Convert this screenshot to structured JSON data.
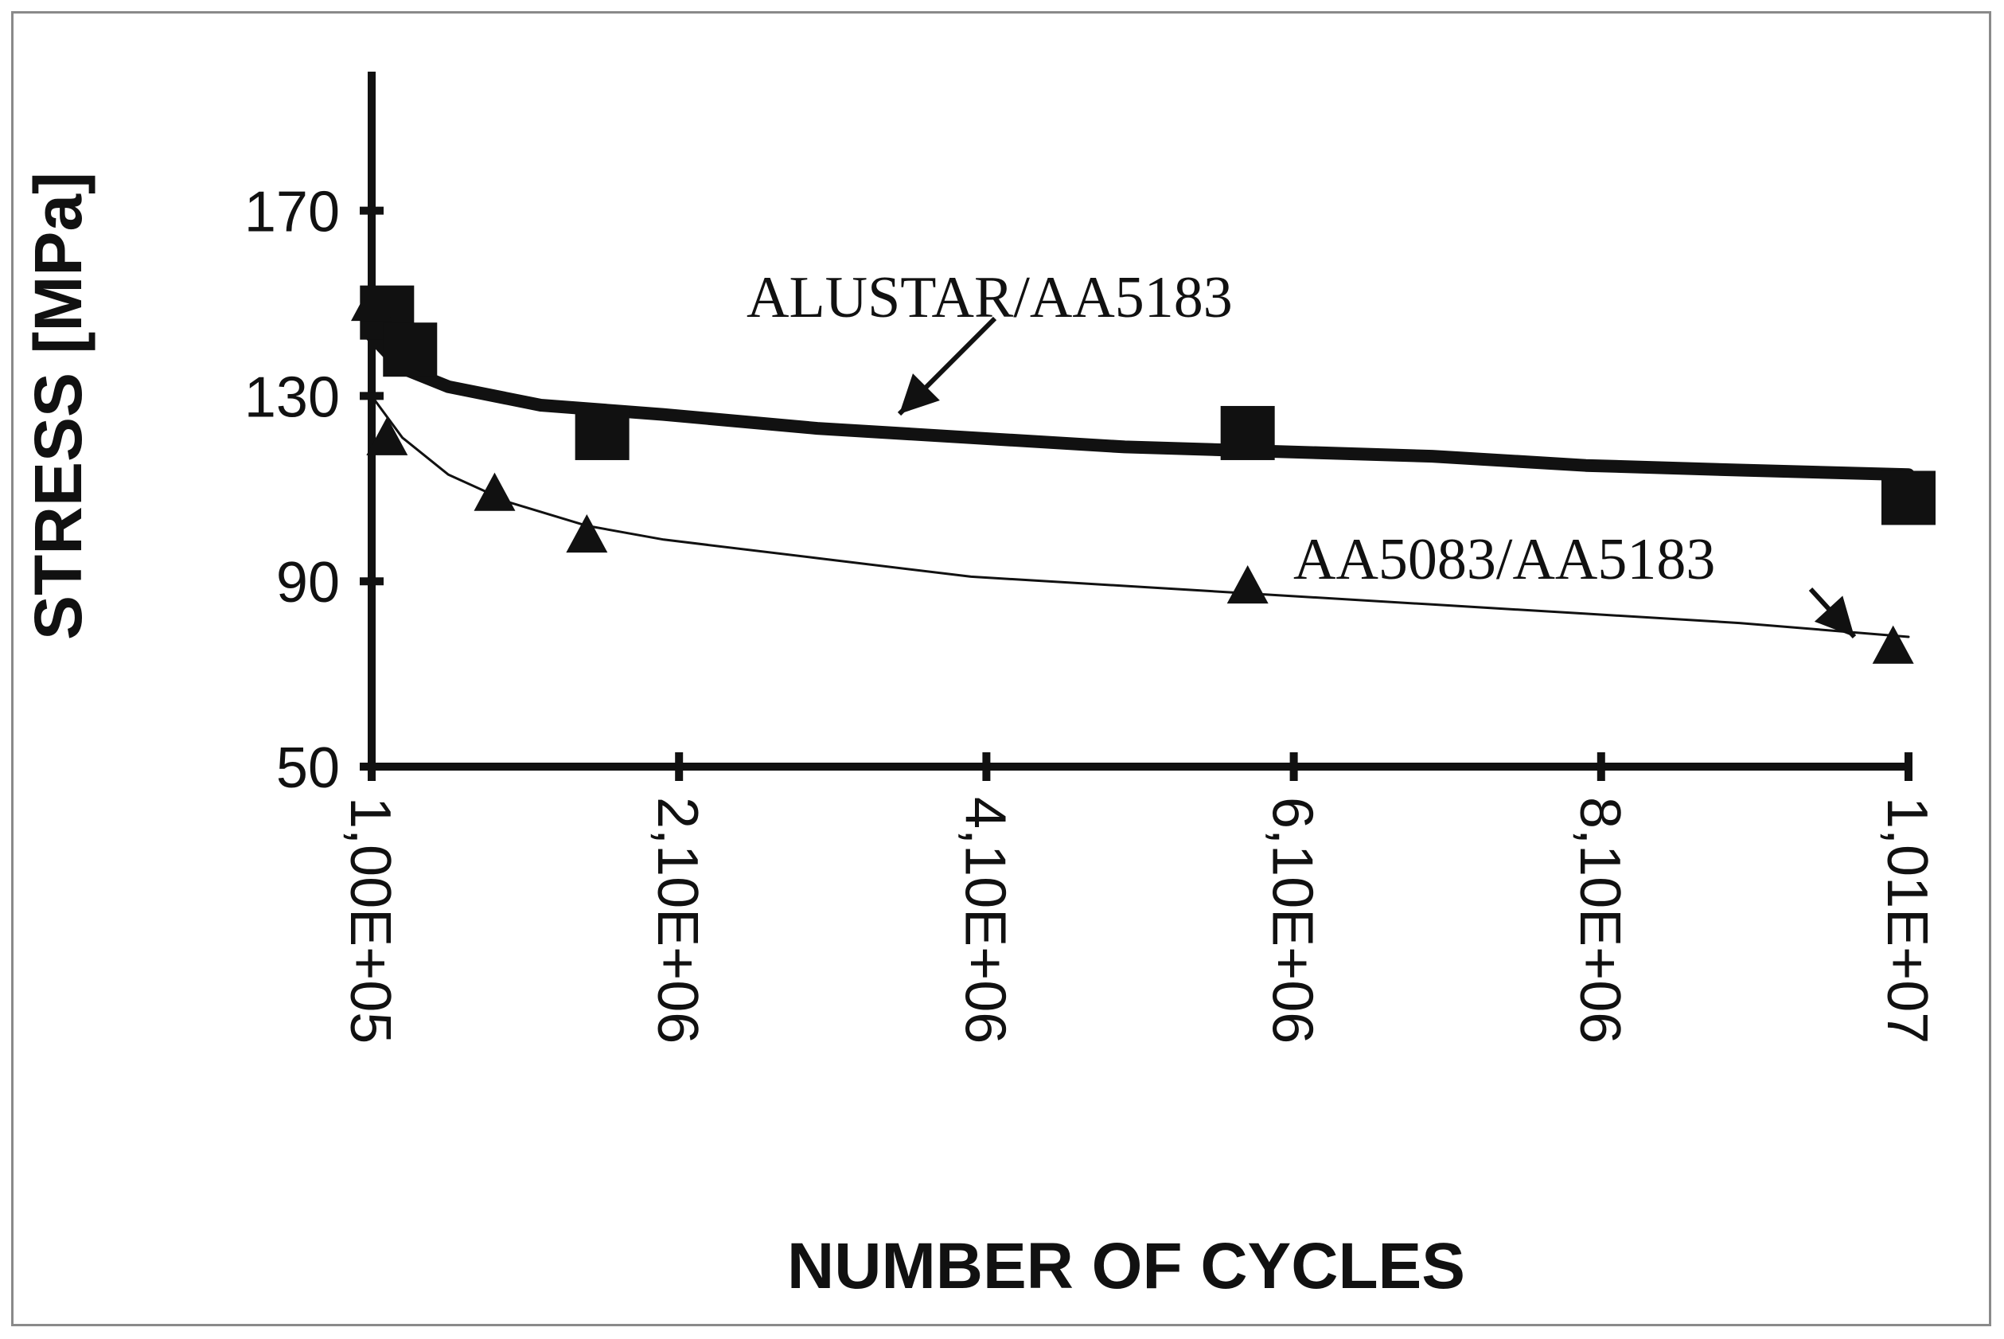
{
  "chart_data": {
    "type": "line",
    "xlabel": "NUMBER OF CYCLES",
    "ylabel": "STRESS [MPa]",
    "xlim": [
      100000,
      10100000
    ],
    "ylim": [
      50,
      200
    ],
    "x_ticks": [
      {
        "value": 100000,
        "label": "1,00E+05"
      },
      {
        "value": 2100000,
        "label": "2,10E+06"
      },
      {
        "value": 4100000,
        "label": "4,10E+06"
      },
      {
        "value": 6100000,
        "label": "6,10E+06"
      },
      {
        "value": 8100000,
        "label": "8,10E+06"
      },
      {
        "value": 10100000,
        "label": "1,01E+07"
      }
    ],
    "y_ticks": [
      {
        "value": 50,
        "label": "50"
      },
      {
        "value": 90,
        "label": "90"
      },
      {
        "value": 130,
        "label": "130"
      },
      {
        "value": 170,
        "label": "170"
      }
    ],
    "grid": false,
    "series": [
      {
        "name": "ALUSTAR/AA5183",
        "marker": "square",
        "color": "#111111",
        "points": [
          [
            200000,
            148
          ],
          [
            350000,
            140
          ],
          [
            1600000,
            122
          ],
          [
            5800000,
            122
          ],
          [
            10100000,
            108
          ]
        ],
        "trend": [
          [
            100000,
            143
          ],
          [
            300000,
            136
          ],
          [
            600000,
            132
          ],
          [
            1200000,
            128
          ],
          [
            2000000,
            126
          ],
          [
            3000000,
            123
          ],
          [
            4000000,
            121
          ],
          [
            5000000,
            119
          ],
          [
            6000000,
            118
          ],
          [
            7000000,
            117
          ],
          [
            8000000,
            115
          ],
          [
            9000000,
            114
          ],
          [
            10100000,
            113
          ]
        ]
      },
      {
        "name": "AA5083/AA5183",
        "marker": "triangle",
        "color": "#111111",
        "points": [
          [
            100000,
            150
          ],
          [
            200000,
            121
          ],
          [
            900000,
            109
          ],
          [
            1500000,
            100
          ],
          [
            5800000,
            89
          ],
          [
            10000000,
            76
          ]
        ],
        "trend": [
          [
            100000,
            130
          ],
          [
            300000,
            121
          ],
          [
            600000,
            113
          ],
          [
            1000000,
            107
          ],
          [
            1500000,
            102
          ],
          [
            2000000,
            99
          ],
          [
            3000000,
            95
          ],
          [
            4000000,
            91
          ],
          [
            5000000,
            89
          ],
          [
            6000000,
            87
          ],
          [
            7000000,
            85
          ],
          [
            8000000,
            83
          ],
          [
            9000000,
            81
          ],
          [
            10100000,
            78
          ]
        ]
      }
    ],
    "annotations": [
      {
        "text": "ALUSTAR/AA5183",
        "series": 0
      },
      {
        "text": "AA5083/AA5183",
        "series": 1
      }
    ]
  }
}
